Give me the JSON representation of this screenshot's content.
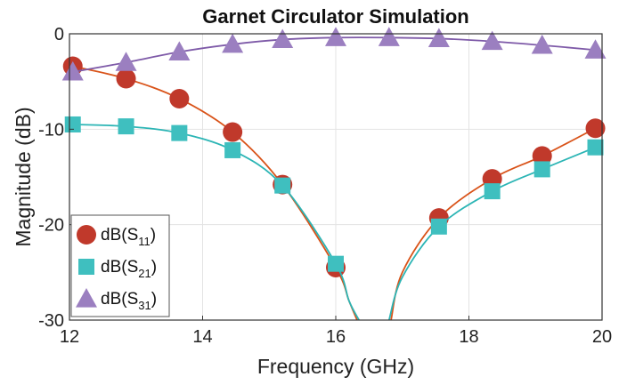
{
  "chart_data": {
    "type": "line",
    "title": "Garnet Circulator Simulation",
    "xlabel": "Frequency (GHz)",
    "ylabel": "Magnitude (dB)",
    "xlim": [
      12,
      20
    ],
    "ylim": [
      -30,
      0
    ],
    "xticks": [
      12,
      14,
      16,
      18,
      20
    ],
    "yticks": [
      0,
      -10,
      -20,
      -30
    ],
    "grid": true,
    "legend_position": "bottom-left",
    "series": [
      {
        "name": "dB(S11)",
        "name_main": "dB(S",
        "name_sub": "11",
        "name_close": ")",
        "color": "#d95319",
        "marker_color": "#c0392b",
        "marker": "circle",
        "x": [
          12.05,
          12.85,
          13.65,
          14.45,
          15.2,
          16.0,
          17.55,
          18.35,
          19.1,
          19.9
        ],
        "y": [
          -3.4,
          -4.7,
          -6.8,
          -10.3,
          -15.8,
          -24.5,
          -19.3,
          -15.2,
          -12.8,
          -9.9
        ],
        "curve_segments": [
          {
            "x": [
              12.05,
              12.85,
              13.65,
              14.45,
              15.2,
              16.0,
              16.2,
              16.32
            ],
            "y": [
              -3.4,
              -4.7,
              -6.8,
              -10.3,
              -15.8,
              -24.5,
              -28.0,
              -30.0
            ]
          },
          {
            "x": [
              16.83,
              17.0,
              17.55,
              18.35,
              19.1,
              19.9
            ],
            "y": [
              -30.0,
              -25.0,
              -19.3,
              -15.2,
              -12.8,
              -9.9
            ]
          }
        ]
      },
      {
        "name": "dB(S21)",
        "name_main": "dB(S",
        "name_sub": "21",
        "name_close": ")",
        "color": "#2cb5b5",
        "marker_color": "#3fbfbf",
        "marker": "square",
        "x": [
          12.05,
          12.85,
          13.65,
          14.45,
          15.2,
          16.0,
          17.55,
          18.35,
          19.1,
          19.9
        ],
        "y": [
          -9.5,
          -9.7,
          -10.4,
          -12.2,
          -15.9,
          -24.1,
          -20.2,
          -16.5,
          -14.2,
          -11.9
        ],
        "curve_segments": [
          {
            "x": [
              12.05,
              12.85,
              13.65,
              14.45,
              15.2,
              16.0,
              16.2,
              16.35
            ],
            "y": [
              -9.5,
              -9.7,
              -10.4,
              -12.2,
              -15.9,
              -24.1,
              -28.0,
              -30.0
            ]
          },
          {
            "x": [
              16.8,
              17.0,
              17.55,
              18.35,
              19.1,
              19.9
            ],
            "y": [
              -30.0,
              -25.5,
              -20.2,
              -16.5,
              -14.2,
              -11.9
            ]
          }
        ]
      },
      {
        "name": "dB(S31)",
        "name_main": "dB(S",
        "name_sub": "31",
        "name_close": ")",
        "color": "#7e5aa8",
        "marker_color": "#9b7fc0",
        "marker": "triangle",
        "x": [
          12.05,
          12.85,
          13.65,
          14.45,
          15.2,
          16.0,
          16.8,
          17.55,
          18.35,
          19.1,
          19.9
        ],
        "y": [
          -4.0,
          -3.0,
          -1.9,
          -1.1,
          -0.6,
          -0.4,
          -0.4,
          -0.5,
          -0.8,
          -1.2,
          -1.7
        ],
        "curve_segments": [
          {
            "x": [
              12.05,
              12.85,
              13.65,
              14.45,
              15.2,
              16.0,
              16.8,
              17.55,
              18.35,
              19.1,
              19.9
            ],
            "y": [
              -4.0,
              -3.0,
              -1.9,
              -1.1,
              -0.6,
              -0.4,
              -0.4,
              -0.5,
              -0.8,
              -1.2,
              -1.7
            ]
          }
        ]
      }
    ]
  }
}
